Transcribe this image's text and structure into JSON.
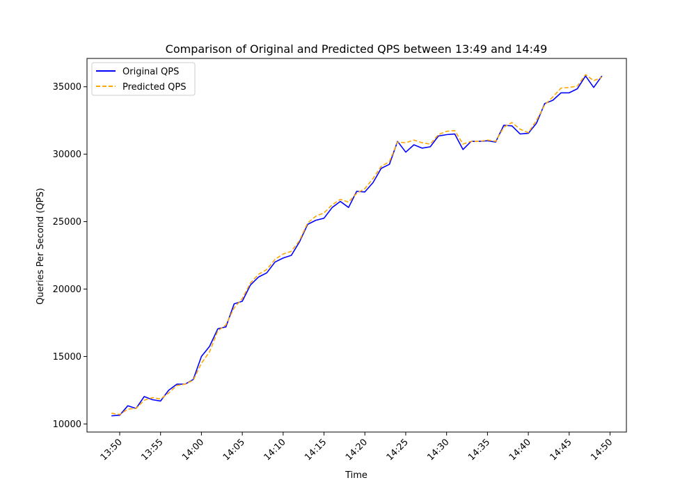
{
  "chart_data": {
    "type": "line",
    "title": "Comparison of Original and Predicted QPS between 13:49 and 14:49",
    "xlabel": "Time",
    "ylabel": "Queries Per Second (QPS)",
    "x_start": "13:49",
    "x_step_minutes": 1,
    "xlim": [
      "13:46",
      "14:52"
    ],
    "ylim": [
      9400,
      37100
    ],
    "x_ticks": [
      "13:50",
      "13:55",
      "14:00",
      "14:05",
      "14:10",
      "14:15",
      "14:20",
      "14:25",
      "14:30",
      "14:35",
      "14:40",
      "14:45",
      "14:50"
    ],
    "y_ticks": [
      10000,
      15000,
      20000,
      25000,
      30000,
      35000
    ],
    "legend_position": "top-left",
    "grid": false,
    "series": [
      {
        "name": "Original QPS",
        "color": "#0000ff",
        "style": "solid",
        "values": [
          10600,
          10650,
          11350,
          11150,
          12030,
          11800,
          11700,
          12500,
          12950,
          12950,
          13300,
          15000,
          15750,
          17050,
          17200,
          18900,
          19100,
          20300,
          20900,
          21200,
          22000,
          22300,
          22500,
          23500,
          24800,
          25100,
          25250,
          26050,
          26500,
          26050,
          27250,
          27200,
          27900,
          28950,
          29250,
          30950,
          30150,
          30700,
          30450,
          30550,
          31350,
          31450,
          31500,
          30350,
          30950,
          30950,
          31000,
          30900,
          32150,
          32100,
          31500,
          31550,
          32300,
          33750,
          34000,
          34550,
          34550,
          34850,
          35800,
          34950,
          35800
        ]
      },
      {
        "name": "Predicted QPS",
        "color": "#ffa500",
        "style": "dashed",
        "values": [
          10800,
          10700,
          11100,
          11150,
          11750,
          11950,
          11850,
          12300,
          12850,
          12950,
          13250,
          14500,
          15350,
          16900,
          17350,
          18600,
          19300,
          20450,
          21100,
          21450,
          22200,
          22600,
          22800,
          23600,
          24900,
          25400,
          25650,
          26250,
          26650,
          26450,
          27100,
          27450,
          28200,
          29100,
          29450,
          30900,
          30850,
          31050,
          30850,
          30750,
          31450,
          31700,
          31750,
          30750,
          30950,
          30950,
          31050,
          30950,
          32000,
          32350,
          31850,
          31600,
          32500,
          33650,
          34250,
          34900,
          34950,
          35050,
          35900,
          35450,
          35700
        ]
      }
    ]
  }
}
